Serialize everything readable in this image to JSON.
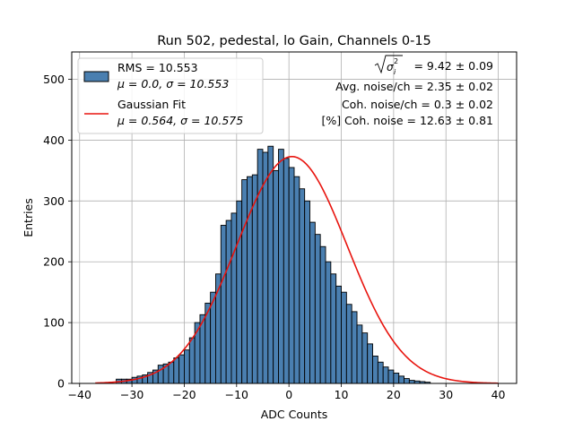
{
  "chart_data": {
    "type": "bar",
    "title": "Run 502, pedestal, lo Gain, Channels 0-15",
    "xlabel": "ADC Counts",
    "ylabel": "Entries",
    "xlim": [
      -41.5,
      43.5
    ],
    "ylim": [
      0,
      545
    ],
    "xticks": [
      -40,
      -30,
      -20,
      -10,
      0,
      10,
      20,
      30,
      40
    ],
    "yticks": [
      0,
      100,
      200,
      300,
      400,
      500
    ],
    "grid": true,
    "legend_position": "top-left",
    "bin_width": 1,
    "bin_start": -33,
    "histogram_values": [
      7,
      7,
      7,
      10,
      12,
      14,
      18,
      22,
      30,
      32,
      35,
      42,
      47,
      55,
      75,
      100,
      113,
      132,
      150,
      180,
      260,
      268,
      280,
      300,
      335,
      340,
      343,
      385,
      380,
      390,
      350,
      385,
      370,
      355,
      340,
      320,
      300,
      265,
      245,
      225,
      200,
      180,
      160,
      150,
      130,
      118,
      96,
      83,
      65,
      45,
      35,
      27,
      22,
      17,
      12,
      8,
      5,
      4,
      3,
      2
    ],
    "bar_color": "#4a7fb0",
    "bar_edge_color": "#000000",
    "series": [
      {
        "name": "RMS = 10.553",
        "name2": "μ = 0.0, σ = 10.553",
        "kind": "histogram"
      },
      {
        "name": "Gaussian Fit",
        "name2": "μ = 0.564, σ = 10.575",
        "kind": "line",
        "color": "#e8140e",
        "mu": 0.564,
        "sigma": 10.575,
        "amplitude": 373,
        "x_range": [
          -37,
          40
        ]
      }
    ],
    "annotations": [
      {
        "prefix": "",
        "rest": " = 9.42 ± 0.09",
        "math": true
      },
      {
        "text": "Avg. noise/ch = 2.35 ± 0.02"
      },
      {
        "text": "Coh. noise/ch = 0.3 ± 0.02"
      },
      {
        "text": "[%] Coh. noise = 12.63 ± 0.81"
      }
    ]
  }
}
